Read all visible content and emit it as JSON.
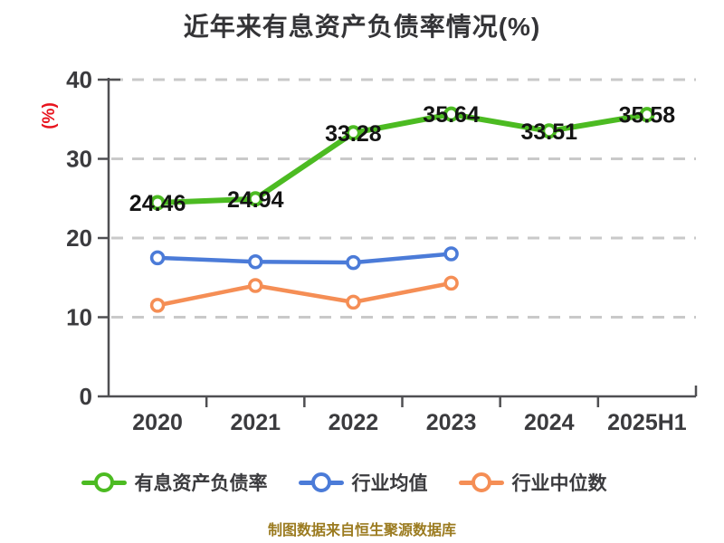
{
  "title": "近年来有息资产负债率情况(%)",
  "footer": {
    "text": "制图数据来自恒生聚源数据库",
    "color": "#9b7b20"
  },
  "colors": {
    "title": "#343437",
    "axis": "#4f4f52",
    "tick_labels": "#3b3b3e",
    "grid": "#c9c9c9",
    "data_label": "#141414",
    "y_unit_label": "#e8131d",
    "series_green": "#4cbb22",
    "series_blue": "#4b7bd8",
    "series_orange": "#f58e55"
  },
  "chart_data": {
    "type": "line",
    "title": "近年来有息资产负债率情况(%)",
    "categories": [
      "2020",
      "2021",
      "2022",
      "2023",
      "2024",
      "2025H1"
    ],
    "series": [
      {
        "name": "有息资产负债率",
        "color": "#4cbb22",
        "values": [
          24.46,
          24.94,
          33.28,
          35.64,
          33.51,
          35.58
        ],
        "labels": [
          "24.46",
          "24.94",
          "33.28",
          "35.64",
          "33.51",
          "35.58"
        ]
      },
      {
        "name": "行业均值",
        "color": "#4b7bd8",
        "values": [
          17.5,
          17.0,
          16.9,
          18.0,
          null,
          null
        ]
      },
      {
        "name": "行业中位数",
        "color": "#f58e55",
        "values": [
          11.5,
          14.0,
          11.9,
          14.3,
          null,
          null
        ]
      }
    ],
    "ylabel": "(%)",
    "ylim": [
      0,
      40
    ],
    "yticks": [
      0,
      10,
      20,
      30,
      40
    ],
    "grid": true,
    "grid_style": "dashed",
    "legend_position": "bottom"
  }
}
